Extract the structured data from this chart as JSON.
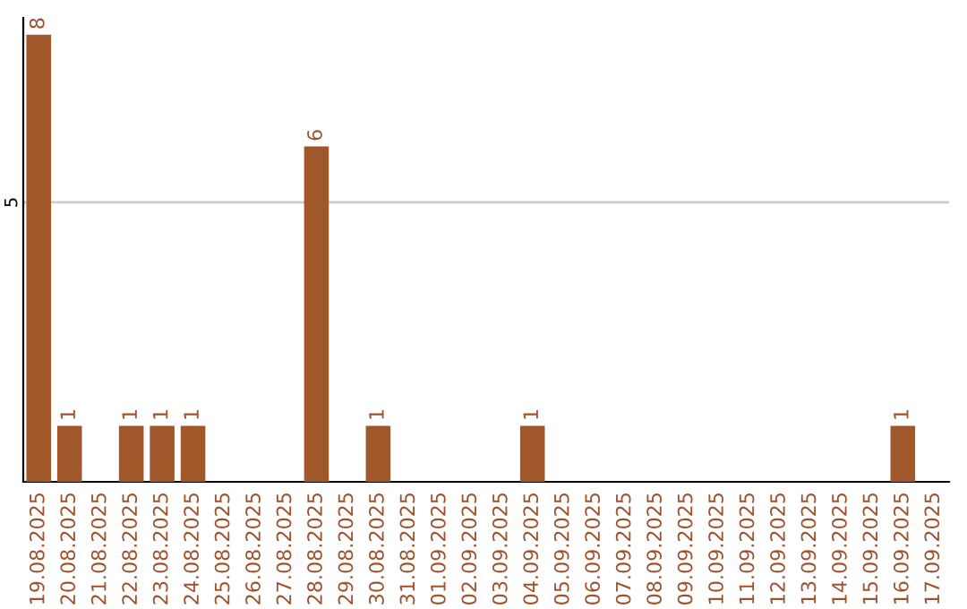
{
  "chart_data": {
    "type": "bar",
    "categories": [
      "19.08.2025",
      "20.08.2025",
      "21.08.2025",
      "22.08.2025",
      "23.08.2025",
      "24.08.2025",
      "25.08.2025",
      "26.08.2025",
      "27.08.2025",
      "28.08.2025",
      "29.08.2025",
      "30.08.2025",
      "31.08.2025",
      "01.09.2025",
      "02.09.2025",
      "03.09.2025",
      "04.09.2025",
      "05.09.2025",
      "06.09.2025",
      "07.09.2025",
      "08.09.2025",
      "09.09.2025",
      "10.09.2025",
      "11.09.2025",
      "12.09.2025",
      "13.09.2025",
      "14.09.2025",
      "15.09.2025",
      "16.09.2025",
      "17.09.2025"
    ],
    "values": [
      8,
      1,
      0,
      1,
      1,
      1,
      0,
      0,
      0,
      6,
      0,
      1,
      0,
      0,
      0,
      0,
      1,
      0,
      0,
      0,
      0,
      0,
      0,
      0,
      0,
      0,
      0,
      0,
      1,
      0
    ],
    "value_labels": [
      "8",
      "1",
      null,
      "1",
      "1",
      "1",
      null,
      null,
      null,
      "6",
      null,
      "1",
      null,
      null,
      null,
      null,
      "1",
      null,
      null,
      null,
      null,
      null,
      null,
      null,
      null,
      null,
      null,
      null,
      "1",
      null
    ],
    "color": "#a0582a",
    "ylim": [
      0,
      8.3
    ],
    "yticks": [
      5
    ],
    "grid": "y",
    "legend": false
  }
}
